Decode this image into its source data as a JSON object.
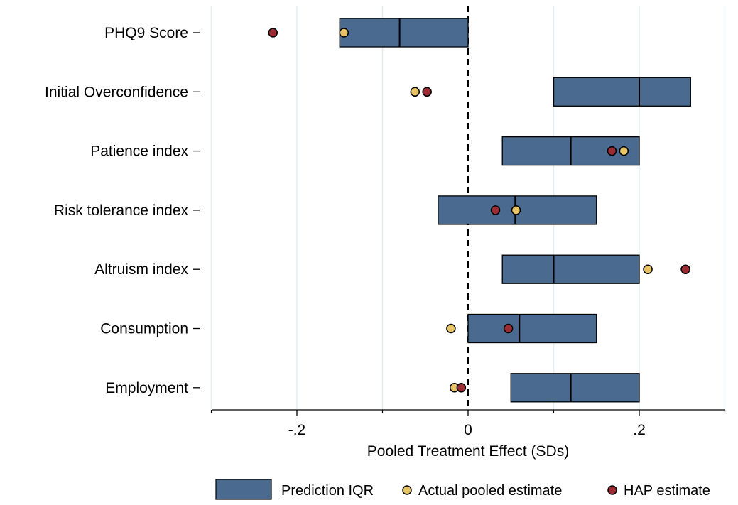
{
  "chart_data": {
    "type": "box-dot",
    "xlabel": "Pooled Treatment Effect (SDs)",
    "xlim": [
      -0.3,
      0.3
    ],
    "xticks": [
      {
        "value": -0.2,
        "label": "-.2"
      },
      {
        "value": 0,
        "label": "0"
      },
      {
        "value": 0.2,
        "label": ".2"
      }
    ],
    "xminor": [
      -0.3,
      -0.1,
      0.1,
      0.3
    ],
    "grid": true,
    "reference_line": 0,
    "legend_position": "bottom",
    "legend": {
      "iqr": "Prediction IQR",
      "actual": "Actual pooled estimate",
      "hap": "HAP estimate"
    },
    "colors": {
      "box_fill": "#4a6a8f",
      "box_stroke": "#000000",
      "actual": "#e8c364",
      "hap": "#9b2c33",
      "grid": "#e3ecef"
    },
    "categories": [
      "PHQ9 Score",
      "Initial Overconfidence",
      "Patience index",
      "Risk tolerance index",
      "Altruism index",
      "Consumption",
      "Employment"
    ],
    "rows": [
      {
        "label": "PHQ9 Score",
        "q1": -0.15,
        "median": -0.08,
        "q3": 0.0,
        "actual": -0.145,
        "hap": -0.228
      },
      {
        "label": "Initial Overconfidence",
        "q1": 0.1,
        "median": 0.2,
        "q3": 0.26,
        "actual": -0.062,
        "hap": -0.048
      },
      {
        "label": "Patience index",
        "q1": 0.04,
        "median": 0.12,
        "q3": 0.2,
        "actual": 0.182,
        "hap": 0.168
      },
      {
        "label": "Risk tolerance index",
        "q1": -0.035,
        "median": 0.055,
        "q3": 0.15,
        "actual": 0.056,
        "hap": 0.032
      },
      {
        "label": "Altruism index",
        "q1": 0.04,
        "median": 0.1,
        "q3": 0.2,
        "actual": 0.21,
        "hap": 0.254
      },
      {
        "label": "Consumption",
        "q1": 0.0,
        "median": 0.06,
        "q3": 0.15,
        "actual": -0.02,
        "hap": 0.047
      },
      {
        "label": "Employment",
        "q1": 0.05,
        "median": 0.12,
        "q3": 0.2,
        "actual": -0.016,
        "hap": -0.008
      }
    ]
  }
}
